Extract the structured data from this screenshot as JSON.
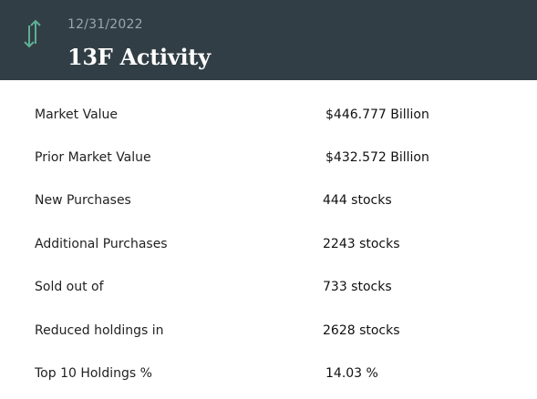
{
  "header": {
    "date": "12/31/2022",
    "title": "13F Activity",
    "icon": "up-down-arrows-icon",
    "icon_color": "#5fae96",
    "background": "#323e45"
  },
  "rows": [
    {
      "label": "Market Value",
      "value": "$446.777 Billion"
    },
    {
      "label": "Prior Market Value",
      "value": "$432.572 Billion"
    },
    {
      "label": "New Purchases",
      "value": "444 stocks"
    },
    {
      "label": "Additional Purchases",
      "value": "2243 stocks"
    },
    {
      "label": "Sold out of",
      "value": "733 stocks"
    },
    {
      "label": "Reduced holdings in",
      "value": "2628 stocks"
    },
    {
      "label": "Top 10 Holdings %",
      "value": "14.03 %"
    }
  ]
}
